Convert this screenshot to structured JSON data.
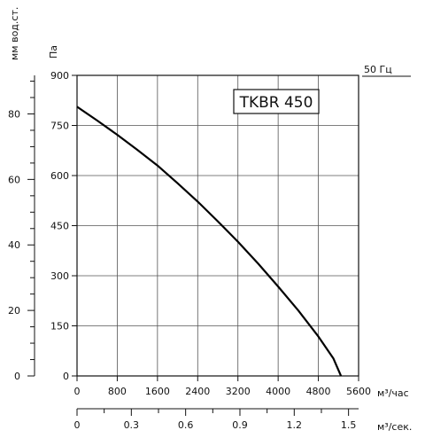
{
  "chart_data": {
    "type": "line",
    "title": "TKBR 450",
    "frequency_label": "50 Гц",
    "x_primary": {
      "label": "м³/час",
      "lim": [
        0,
        5600
      ],
      "ticks": [
        0,
        800,
        1600,
        2400,
        3200,
        4000,
        4800,
        5600
      ]
    },
    "x_secondary": {
      "label": "м³/сек.",
      "lim": [
        0,
        1.5556
      ],
      "ticks": [
        "0",
        "0.3",
        "0.6",
        "0.9",
        "1.2",
        "1.5"
      ],
      "tick_values": [
        0,
        0.3,
        0.6,
        0.9,
        1.2,
        1.5
      ]
    },
    "y_primary": {
      "label": "Па",
      "lim": [
        0,
        900
      ],
      "ticks": [
        0,
        150,
        300,
        450,
        600,
        750,
        900
      ]
    },
    "y_secondary": {
      "label": "мм вод.ст.",
      "lim": [
        0,
        91.77
      ],
      "ticks": [
        "0",
        "20",
        "40",
        "60",
        "80"
      ],
      "tick_values": [
        0,
        20,
        40,
        60,
        80
      ]
    },
    "grid": true,
    "series": [
      {
        "x": [
          0,
          400,
          800,
          1200,
          1600,
          2000,
          2400,
          2800,
          3200,
          3600,
          4000,
          4400,
          4800,
          5100,
          5250
        ],
        "y": [
          806,
          765,
          722,
          677,
          630,
          577,
          522,
          463,
          402,
          337,
          268,
          196,
          118,
          52,
          0
        ]
      }
    ]
  }
}
